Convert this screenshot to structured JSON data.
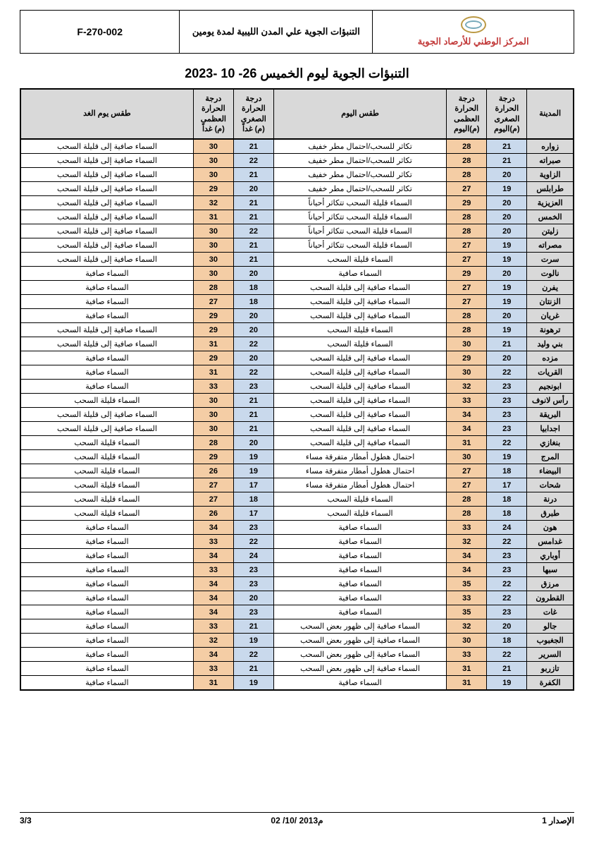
{
  "header": {
    "org": "المركز الوطني للأرصاد الجوية",
    "doc_title": "التنبؤات الجوية علي المدن الليبية لمدة يومين",
    "code": "F-270-002"
  },
  "page_title": "التنبؤات الجوية ليوم الخميس  26- 10 -2023",
  "columns": {
    "city": "المدينة",
    "tmin_today": "درجة الحرارة الصغرى (م)اليوم",
    "tmax_today": "درجة الحرارة العظمى (م)اليوم",
    "wx_today": "طقس اليوم",
    "tmin_tmrw": "درجة الحرارة الصغرى (م) غداً",
    "tmax_tmrw": "درجة الحرارة العظمى (م) غداً",
    "wx_tmrw": "طقس يوم الغد"
  },
  "colors": {
    "header_bg": "#d9d9d9",
    "tmin_bg": "#c9d9ec",
    "tmax_bg": "#f4cda5",
    "border": "#000000",
    "org_text": "#c23a3a"
  },
  "rows": [
    {
      "city": "زواره",
      "tmin": 21,
      "tmax": 28,
      "wx": "تكاثر للسحب/احتمال مطر خفيف",
      "tmin2": 21,
      "tmax2": 30,
      "wx2": "السماء صافية إلى قليلة السحب"
    },
    {
      "city": "صبراته",
      "tmin": 21,
      "tmax": 28,
      "wx": "تكاثر للسحب/احتمال مطر خفيف",
      "tmin2": 22,
      "tmax2": 30,
      "wx2": "السماء صافية إلى قليلة السحب"
    },
    {
      "city": "الزاوية",
      "tmin": 20,
      "tmax": 28,
      "wx": "تكاثر للسحب/احتمال مطر خفيف",
      "tmin2": 21,
      "tmax2": 30,
      "wx2": "السماء صافية إلى قليلة السحب"
    },
    {
      "city": "طرابلس",
      "tmin": 19,
      "tmax": 27,
      "wx": "تكاثر للسحب/احتمال مطر خفيف",
      "tmin2": 20,
      "tmax2": 29,
      "wx2": "السماء صافية إلى قليلة السحب"
    },
    {
      "city": "العزيزية",
      "tmin": 20,
      "tmax": 29,
      "wx": "السماء قليلة السحب تتكاثر أحياناً",
      "tmin2": 21,
      "tmax2": 32,
      "wx2": "السماء صافية إلى قليلة السحب"
    },
    {
      "city": "الخمس",
      "tmin": 20,
      "tmax": 28,
      "wx": "السماء قليلة السحب تتكاثر أحياناً",
      "tmin2": 21,
      "tmax2": 31,
      "wx2": "السماء صافية إلى قليلة السحب"
    },
    {
      "city": "زليتن",
      "tmin": 20,
      "tmax": 28,
      "wx": "السماء قليلة السحب تتكاثر أحياناً",
      "tmin2": 22,
      "tmax2": 30,
      "wx2": "السماء صافية إلى قليلة السحب"
    },
    {
      "city": "مصراته",
      "tmin": 19,
      "tmax": 27,
      "wx": "السماء قليلة السحب تتكاثر أحياناً",
      "tmin2": 21,
      "tmax2": 30,
      "wx2": "السماء صافية إلى قليلة السحب"
    },
    {
      "city": "سرت",
      "tmin": 19,
      "tmax": 27,
      "wx": "السماء قليلة السحب",
      "tmin2": 21,
      "tmax2": 30,
      "wx2": "السماء صافية إلى قليلة السحب"
    },
    {
      "city": "نالوت",
      "tmin": 20,
      "tmax": 29,
      "wx": "السماء صافية",
      "tmin2": 20,
      "tmax2": 30,
      "wx2": "السماء صافية"
    },
    {
      "city": "يفرن",
      "tmin": 19,
      "tmax": 27,
      "wx": "السماء صافية إلى قليلة السحب",
      "tmin2": 18,
      "tmax2": 28,
      "wx2": "السماء صافية"
    },
    {
      "city": "الزنتان",
      "tmin": 19,
      "tmax": 27,
      "wx": "السماء صافية إلى قليلة السحب",
      "tmin2": 18,
      "tmax2": 27,
      "wx2": "السماء صافية"
    },
    {
      "city": "غريان",
      "tmin": 20,
      "tmax": 28,
      "wx": "السماء صافية إلى قليلة السحب",
      "tmin2": 20,
      "tmax2": 29,
      "wx2": "السماء صافية"
    },
    {
      "city": "ترهونة",
      "tmin": 19,
      "tmax": 28,
      "wx": "السماء قليلة السحب",
      "tmin2": 20,
      "tmax2": 29,
      "wx2": "السماء صافية إلى قليلة السحب"
    },
    {
      "city": "بني وليد",
      "tmin": 21,
      "tmax": 30,
      "wx": "السماء قليلة السحب",
      "tmin2": 22,
      "tmax2": 31,
      "wx2": "السماء صافية إلى قليلة السحب"
    },
    {
      "city": "مزده",
      "tmin": 20,
      "tmax": 29,
      "wx": "السماء صافية إلى قليلة السحب",
      "tmin2": 20,
      "tmax2": 29,
      "wx2": "السماء صافية"
    },
    {
      "city": "القريات",
      "tmin": 22,
      "tmax": 30,
      "wx": "السماء صافية إلى قليلة السحب",
      "tmin2": 22,
      "tmax2": 31,
      "wx2": "السماء صافية"
    },
    {
      "city": "ابونجيم",
      "tmin": 23,
      "tmax": 32,
      "wx": "السماء صافية إلى قليلة السحب",
      "tmin2": 23,
      "tmax2": 33,
      "wx2": "السماء صافية"
    },
    {
      "city": "رأس لانوف",
      "tmin": 23,
      "tmax": 33,
      "wx": "السماء صافية إلى قليلة السحب",
      "tmin2": 21,
      "tmax2": 30,
      "wx2": "السماء قليلة السحب"
    },
    {
      "city": "البريقة",
      "tmin": 23,
      "tmax": 34,
      "wx": "السماء صافية إلى قليلة السحب",
      "tmin2": 21,
      "tmax2": 30,
      "wx2": "السماء صافية إلى قليلة السحب"
    },
    {
      "city": "اجدابيا",
      "tmin": 23,
      "tmax": 34,
      "wx": "السماء صافية إلى قليلة السحب",
      "tmin2": 21,
      "tmax2": 30,
      "wx2": "السماء صافية إلى قليلة السحب"
    },
    {
      "city": "بنغازي",
      "tmin": 22,
      "tmax": 31,
      "wx": "السماء صافية إلى قليلة السحب",
      "tmin2": 20,
      "tmax2": 28,
      "wx2": "السماء قليلة السحب"
    },
    {
      "city": "المرج",
      "tmin": 19,
      "tmax": 30,
      "wx": "احتمال هطول أمطار متفرقة مساء",
      "tmin2": 19,
      "tmax2": 29,
      "wx2": "السماء قليلة السحب"
    },
    {
      "city": "البيضاء",
      "tmin": 18,
      "tmax": 27,
      "wx": "احتمال هطول أمطار متفرقة مساء",
      "tmin2": 19,
      "tmax2": 26,
      "wx2": "السماء قليلة السحب"
    },
    {
      "city": "شحات",
      "tmin": 17,
      "tmax": 27,
      "wx": "احتمال هطول أمطار متفرقة مساء",
      "tmin2": 17,
      "tmax2": 27,
      "wx2": "السماء قليلة السحب"
    },
    {
      "city": "درنة",
      "tmin": 18,
      "tmax": 28,
      "wx": "السماء قليلة السحب",
      "tmin2": 18,
      "tmax2": 27,
      "wx2": "السماء قليلة السحب"
    },
    {
      "city": "طبرق",
      "tmin": 18,
      "tmax": 28,
      "wx": "السماء قليلة السحب",
      "tmin2": 17,
      "tmax2": 26,
      "wx2": "السماء قليلة السحب"
    },
    {
      "city": "هون",
      "tmin": 24,
      "tmax": 33,
      "wx": "السماء صافية",
      "tmin2": 23,
      "tmax2": 34,
      "wx2": "السماء صافية"
    },
    {
      "city": "غدامس",
      "tmin": 22,
      "tmax": 32,
      "wx": "السماء صافية",
      "tmin2": 22,
      "tmax2": 33,
      "wx2": "السماء صافية"
    },
    {
      "city": "أوباري",
      "tmin": 23,
      "tmax": 34,
      "wx": "السماء صافية",
      "tmin2": 24,
      "tmax2": 34,
      "wx2": "السماء صافية"
    },
    {
      "city": "سبها",
      "tmin": 23,
      "tmax": 34,
      "wx": "السماء صافية",
      "tmin2": 23,
      "tmax2": 33,
      "wx2": "السماء صافية"
    },
    {
      "city": "مرزق",
      "tmin": 22,
      "tmax": 35,
      "wx": "السماء صافية",
      "tmin2": 23,
      "tmax2": 34,
      "wx2": "السماء صافية"
    },
    {
      "city": "القطرون",
      "tmin": 22,
      "tmax": 33,
      "wx": "السماء صافية",
      "tmin2": 20,
      "tmax2": 34,
      "wx2": "السماء صافية"
    },
    {
      "city": "غات",
      "tmin": 23,
      "tmax": 35,
      "wx": "السماء صافية",
      "tmin2": 23,
      "tmax2": 34,
      "wx2": "السماء صافية"
    },
    {
      "city": "جالو",
      "tmin": 20,
      "tmax": 32,
      "wx": "السماء صافية إلى ظهور بعض السحب",
      "tmin2": 21,
      "tmax2": 33,
      "wx2": "السماء صافية"
    },
    {
      "city": "الجغبوب",
      "tmin": 18,
      "tmax": 30,
      "wx": "السماء صافية إلى ظهور بعض السحب",
      "tmin2": 19,
      "tmax2": 32,
      "wx2": "السماء صافية"
    },
    {
      "city": "السرير",
      "tmin": 22,
      "tmax": 33,
      "wx": "السماء صافية إلى ظهور بعض السحب",
      "tmin2": 22,
      "tmax2": 34,
      "wx2": "السماء صافية"
    },
    {
      "city": "تازربو",
      "tmin": 21,
      "tmax": 31,
      "wx": "السماء صافية إلى ظهور بعض السحب",
      "tmin2": 21,
      "tmax2": 33,
      "wx2": "السماء صافية"
    },
    {
      "city": "الكفرة",
      "tmin": 19,
      "tmax": 31,
      "wx": "السماء صافية",
      "tmin2": 19,
      "tmax2": 31,
      "wx2": "السماء صافية"
    }
  ],
  "footer": {
    "issue": "الإصدار 1",
    "date": "02 /10/ 2013م",
    "page": "3/3"
  }
}
